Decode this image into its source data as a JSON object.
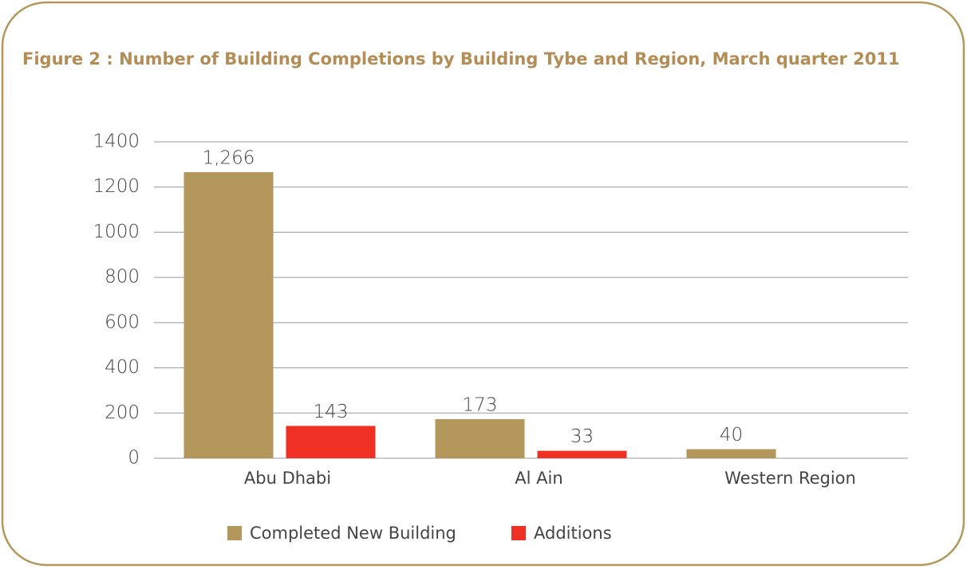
{
  "chart_data": {
    "type": "bar",
    "title": "Figure 2 : Number of Building Completions by Building Tybe and Region, March quarter 2011",
    "categories": [
      "Abu Dhabi",
      "Al Ain",
      "Western Region"
    ],
    "series": [
      {
        "name": "Completed New Building",
        "color": "#b3975b",
        "values": [
          1266,
          173,
          40
        ],
        "value_labels": [
          "1,266",
          "173",
          "40"
        ]
      },
      {
        "name": "Additions",
        "color": "#ee3124",
        "values": [
          143,
          33,
          null
        ]
      }
    ],
    "ylim": [
      0,
      1400
    ],
    "yticks": [
      0,
      200,
      400,
      600,
      800,
      1000,
      1200,
      1400
    ],
    "grid": true,
    "legend": "bottom"
  }
}
